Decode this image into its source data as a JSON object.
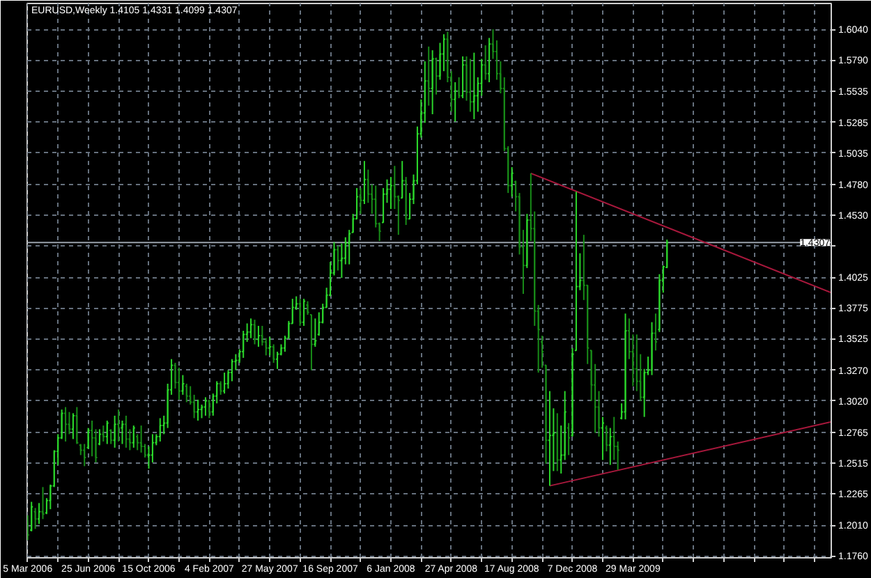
{
  "chart_data": {
    "type": "candlestick",
    "title": "EURUSD,Weekly 1.4105 1.4331 1.4099 1.4307",
    "grid": true,
    "x": [
      "2006-03-05",
      "2006-03-12",
      "2006-03-19",
      "2006-03-26",
      "2006-04-02",
      "2006-04-09",
      "2006-04-16",
      "2006-04-23",
      "2006-04-30",
      "2006-05-07",
      "2006-05-14",
      "2006-05-21",
      "2006-05-28",
      "2006-06-04",
      "2006-06-11",
      "2006-06-18",
      "2006-06-25",
      "2006-07-02",
      "2006-07-09",
      "2006-07-16",
      "2006-07-23",
      "2006-07-30",
      "2006-08-06",
      "2006-08-13",
      "2006-08-20",
      "2006-08-27",
      "2006-09-03",
      "2006-09-10",
      "2006-09-17",
      "2006-09-24",
      "2006-10-01",
      "2006-10-08",
      "2006-10-15",
      "2006-10-22",
      "2006-10-29",
      "2006-11-05",
      "2006-11-12",
      "2006-11-19",
      "2006-11-26",
      "2006-12-03",
      "2006-12-10",
      "2006-12-17",
      "2006-12-24",
      "2006-12-31",
      "2007-01-07",
      "2007-01-14",
      "2007-01-21",
      "2007-01-28",
      "2007-02-04",
      "2007-02-11",
      "2007-02-18",
      "2007-02-25",
      "2007-03-04",
      "2007-03-11",
      "2007-03-18",
      "2007-03-25",
      "2007-04-01",
      "2007-04-08",
      "2007-04-15",
      "2007-04-22",
      "2007-04-29",
      "2007-05-06",
      "2007-05-13",
      "2007-05-20",
      "2007-05-27",
      "2007-06-03",
      "2007-06-10",
      "2007-06-17",
      "2007-06-24",
      "2007-07-01",
      "2007-07-08",
      "2007-07-15",
      "2007-07-22",
      "2007-07-29",
      "2007-08-05",
      "2007-08-12",
      "2007-08-19",
      "2007-08-26",
      "2007-09-02",
      "2007-09-09",
      "2007-09-16",
      "2007-09-23",
      "2007-09-30",
      "2007-10-07",
      "2007-10-14",
      "2007-10-21",
      "2007-10-28",
      "2007-11-04",
      "2007-11-11",
      "2007-11-18",
      "2007-11-25",
      "2007-12-02",
      "2007-12-09",
      "2007-12-16",
      "2007-12-23",
      "2007-12-30",
      "2008-01-06",
      "2008-01-13",
      "2008-01-20",
      "2008-01-27",
      "2008-02-03",
      "2008-02-10",
      "2008-02-17",
      "2008-02-24",
      "2008-03-02",
      "2008-03-09",
      "2008-03-16",
      "2008-03-23",
      "2008-03-30",
      "2008-04-06",
      "2008-04-13",
      "2008-04-20",
      "2008-04-27",
      "2008-05-04",
      "2008-05-11",
      "2008-05-18",
      "2008-05-25",
      "2008-06-01",
      "2008-06-08",
      "2008-06-15",
      "2008-06-22",
      "2008-06-29",
      "2008-07-06",
      "2008-07-13",
      "2008-07-20",
      "2008-07-27",
      "2008-08-03",
      "2008-08-10",
      "2008-08-17",
      "2008-08-24",
      "2008-08-31",
      "2008-09-07",
      "2008-09-14",
      "2008-09-21",
      "2008-09-28",
      "2008-10-05",
      "2008-10-12",
      "2008-10-19",
      "2008-10-26",
      "2008-11-02",
      "2008-11-09",
      "2008-11-16",
      "2008-11-23",
      "2008-11-30",
      "2008-12-07",
      "2008-12-14",
      "2008-12-21",
      "2008-12-28",
      "2009-01-04",
      "2009-01-11",
      "2009-01-18",
      "2009-01-25",
      "2009-02-01",
      "2009-02-08",
      "2009-02-15",
      "2009-02-22",
      "2009-03-01",
      "2009-03-08",
      "2009-03-15",
      "2009-03-22",
      "2009-03-29",
      "2009-04-05",
      "2009-04-12",
      "2009-04-19",
      "2009-04-26",
      "2009-05-03",
      "2009-05-10",
      "2009-05-17",
      "2009-05-24",
      "2009-05-31"
    ],
    "ohlc": [
      [
        1.203,
        1.209,
        1.189,
        1.193
      ],
      [
        1.197,
        1.22,
        1.196,
        1.216
      ],
      [
        1.212,
        1.215,
        1.198,
        1.206
      ],
      [
        1.206,
        1.219,
        1.202,
        1.212
      ],
      [
        1.212,
        1.232,
        1.206,
        1.21
      ],
      [
        1.211,
        1.223,
        1.21,
        1.221
      ],
      [
        1.221,
        1.234,
        1.214,
        1.233
      ],
      [
        1.233,
        1.262,
        1.232,
        1.261
      ],
      [
        1.261,
        1.275,
        1.25,
        1.272
      ],
      [
        1.272,
        1.295,
        1.271,
        1.292
      ],
      [
        1.292,
        1.297,
        1.269,
        1.283
      ],
      [
        1.283,
        1.293,
        1.275,
        1.279
      ],
      [
        1.279,
        1.292,
        1.271,
        1.29
      ],
      [
        1.29,
        1.297,
        1.267,
        1.268
      ],
      [
        1.266,
        1.267,
        1.258,
        1.262
      ],
      [
        1.262,
        1.267,
        1.249,
        1.256
      ],
      [
        1.264,
        1.28,
        1.263,
        1.278
      ],
      [
        1.278,
        1.286,
        1.257,
        1.272
      ],
      [
        1.272,
        1.279,
        1.252,
        1.256
      ],
      [
        1.267,
        1.279,
        1.266,
        1.275
      ],
      [
        1.275,
        1.282,
        1.269,
        1.273
      ],
      [
        1.273,
        1.286,
        1.267,
        1.284
      ],
      [
        1.278,
        1.279,
        1.267,
        1.27
      ],
      [
        1.27,
        1.29,
        1.264,
        1.283
      ],
      [
        1.283,
        1.295,
        1.269,
        1.28
      ],
      [
        1.28,
        1.286,
        1.267,
        1.283
      ],
      [
        1.283,
        1.29,
        1.264,
        1.271
      ],
      [
        1.271,
        1.279,
        1.262,
        1.268
      ],
      [
        1.268,
        1.282,
        1.264,
        1.28
      ],
      [
        1.273,
        1.275,
        1.262,
        1.268
      ],
      [
        1.268,
        1.282,
        1.26,
        1.265
      ],
      [
        1.265,
        1.267,
        1.256,
        1.258
      ],
      [
        1.258,
        1.265,
        1.247,
        1.258
      ],
      [
        1.258,
        1.275,
        1.252,
        1.268
      ],
      [
        1.268,
        1.275,
        1.266,
        1.273
      ],
      [
        1.273,
        1.288,
        1.269,
        1.282
      ],
      [
        1.282,
        1.29,
        1.275,
        1.284
      ],
      [
        1.284,
        1.316,
        1.28,
        1.311
      ],
      [
        1.311,
        1.336,
        1.307,
        1.331
      ],
      [
        1.331,
        1.333,
        1.312,
        1.317
      ],
      [
        1.317,
        1.329,
        1.303,
        1.31
      ],
      [
        1.31,
        1.323,
        1.307,
        1.316
      ],
      [
        1.314,
        1.316,
        1.301,
        1.306
      ],
      [
        1.306,
        1.314,
        1.299,
        1.301
      ],
      [
        1.301,
        1.307,
        1.288,
        1.293
      ],
      [
        1.293,
        1.303,
        1.286,
        1.295
      ],
      [
        1.295,
        1.299,
        1.288,
        1.297
      ],
      [
        1.297,
        1.305,
        1.29,
        1.302
      ],
      [
        1.302,
        1.303,
        1.288,
        1.293
      ],
      [
        1.293,
        1.308,
        1.29,
        1.306
      ],
      [
        1.306,
        1.318,
        1.3,
        1.316
      ],
      [
        1.316,
        1.318,
        1.307,
        1.31
      ],
      [
        1.31,
        1.325,
        1.308,
        1.316
      ],
      [
        1.316,
        1.327,
        1.312,
        1.325
      ],
      [
        1.325,
        1.336,
        1.318,
        1.334
      ],
      [
        1.334,
        1.34,
        1.327,
        1.335
      ],
      [
        1.335,
        1.344,
        1.333,
        1.342
      ],
      [
        1.342,
        1.359,
        1.337,
        1.356
      ],
      [
        1.356,
        1.365,
        1.35,
        1.358
      ],
      [
        1.358,
        1.369,
        1.353,
        1.364
      ],
      [
        1.364,
        1.368,
        1.348,
        1.352
      ],
      [
        1.352,
        1.363,
        1.346,
        1.355
      ],
      [
        1.355,
        1.363,
        1.347,
        1.35
      ],
      [
        1.35,
        1.353,
        1.339,
        1.345
      ],
      [
        1.345,
        1.354,
        1.339,
        1.346
      ],
      [
        1.346,
        1.348,
        1.333,
        1.336
      ],
      [
        1.336,
        1.342,
        1.328,
        1.34
      ],
      [
        1.34,
        1.348,
        1.339,
        1.345
      ],
      [
        1.345,
        1.355,
        1.342,
        1.353
      ],
      [
        1.353,
        1.367,
        1.353,
        1.365
      ],
      [
        1.365,
        1.385,
        1.365,
        1.378
      ],
      [
        1.378,
        1.387,
        1.376,
        1.381
      ],
      [
        1.381,
        1.385,
        1.363,
        1.366
      ],
      [
        1.366,
        1.385,
        1.363,
        1.383
      ],
      [
        1.38,
        1.383,
        1.372,
        1.374
      ],
      [
        1.372,
        1.372,
        1.327,
        1.348
      ],
      [
        1.348,
        1.369,
        1.346,
        1.351
      ],
      [
        1.356,
        1.374,
        1.355,
        1.366
      ],
      [
        1.366,
        1.381,
        1.365,
        1.378
      ],
      [
        1.378,
        1.394,
        1.378,
        1.388
      ],
      [
        1.388,
        1.415,
        1.387,
        1.406
      ],
      [
        1.406,
        1.431,
        1.404,
        1.425
      ],
      [
        1.425,
        1.428,
        1.408,
        1.416
      ],
      [
        1.416,
        1.43,
        1.402,
        1.418
      ],
      [
        1.418,
        1.435,
        1.413,
        1.43
      ],
      [
        1.43,
        1.441,
        1.413,
        1.438
      ],
      [
        1.439,
        1.454,
        1.439,
        1.45
      ],
      [
        1.45,
        1.475,
        1.45,
        1.468
      ],
      [
        1.468,
        1.475,
        1.454,
        1.465
      ],
      [
        1.465,
        1.497,
        1.462,
        1.482
      ],
      [
        1.482,
        1.49,
        1.463,
        1.47
      ],
      [
        1.47,
        1.478,
        1.454,
        1.466
      ],
      [
        1.466,
        1.477,
        1.443,
        1.446
      ],
      [
        1.446,
        1.447,
        1.432,
        1.44
      ],
      [
        1.447,
        1.475,
        1.447,
        1.47
      ],
      [
        1.47,
        1.482,
        1.463,
        1.474
      ],
      [
        1.474,
        1.484,
        1.458,
        1.477
      ],
      [
        1.477,
        1.493,
        1.458,
        1.468
      ],
      [
        1.468,
        1.469,
        1.437,
        1.465
      ],
      [
        1.467,
        1.497,
        1.467,
        1.481
      ],
      [
        1.481,
        1.484,
        1.445,
        1.45
      ],
      [
        1.45,
        1.471,
        1.45,
        1.466
      ],
      [
        1.466,
        1.486,
        1.462,
        1.481
      ],
      [
        1.481,
        1.525,
        1.478,
        1.519
      ],
      [
        1.519,
        1.547,
        1.516,
        1.536
      ],
      [
        1.536,
        1.578,
        1.528,
        1.562
      ],
      [
        1.562,
        1.59,
        1.542,
        1.556
      ],
      [
        1.556,
        1.587,
        1.535,
        1.58
      ],
      [
        1.58,
        1.581,
        1.551,
        1.566
      ],
      [
        1.566,
        1.593,
        1.563,
        1.584
      ],
      [
        1.584,
        1.6,
        1.57,
        1.596
      ],
      [
        1.596,
        1.602,
        1.561,
        1.565
      ],
      [
        1.565,
        1.57,
        1.537,
        1.547
      ],
      [
        1.547,
        1.561,
        1.529,
        1.554
      ],
      [
        1.554,
        1.565,
        1.548,
        1.55
      ],
      [
        1.55,
        1.582,
        1.548,
        1.575
      ],
      [
        1.575,
        1.582,
        1.546,
        1.553
      ],
      [
        1.553,
        1.58,
        1.537,
        1.545
      ],
      [
        1.545,
        1.585,
        1.531,
        1.55
      ],
      [
        1.55,
        1.565,
        1.537,
        1.56
      ],
      [
        1.56,
        1.58,
        1.55,
        1.575
      ],
      [
        1.575,
        1.591,
        1.563,
        1.568
      ],
      [
        1.568,
        1.597,
        1.561,
        1.592
      ],
      [
        1.592,
        1.604,
        1.58,
        1.586
      ],
      [
        1.586,
        1.595,
        1.563,
        1.568
      ],
      [
        1.568,
        1.578,
        1.552,
        1.556
      ],
      [
        1.556,
        1.565,
        1.505,
        1.507
      ],
      [
        1.507,
        1.509,
        1.471,
        1.477
      ],
      [
        1.477,
        1.492,
        1.468,
        1.487
      ],
      [
        1.48,
        1.481,
        1.456,
        1.468
      ],
      [
        1.468,
        1.471,
        1.421,
        1.427
      ],
      [
        1.427,
        1.441,
        1.389,
        1.412
      ],
      [
        1.412,
        1.454,
        1.41,
        1.449
      ],
      [
        1.449,
        1.487,
        1.432,
        1.442
      ],
      [
        1.442,
        1.456,
        1.363,
        1.375
      ],
      [
        1.375,
        1.38,
        1.325,
        1.36
      ],
      [
        1.35,
        1.355,
        1.329,
        1.342
      ],
      [
        1.331,
        1.331,
        1.251,
        1.27
      ],
      [
        1.27,
        1.31,
        1.233,
        1.274
      ],
      [
        1.274,
        1.296,
        1.245,
        1.276
      ],
      [
        1.276,
        1.292,
        1.245,
        1.254
      ],
      [
        1.254,
        1.282,
        1.243,
        1.258
      ],
      [
        1.258,
        1.31,
        1.254,
        1.293
      ],
      [
        1.28,
        1.284,
        1.258,
        1.272
      ],
      [
        1.274,
        1.345,
        1.273,
        1.34
      ],
      [
        1.343,
        1.472,
        1.343,
        1.395
      ],
      [
        1.395,
        1.422,
        1.392,
        1.4
      ],
      [
        1.4,
        1.437,
        1.384,
        1.396
      ],
      [
        1.396,
        1.396,
        1.332,
        1.345
      ],
      [
        1.343,
        1.343,
        1.302,
        1.315
      ],
      [
        1.315,
        1.332,
        1.276,
        1.297
      ],
      [
        1.297,
        1.31,
        1.273,
        1.28
      ],
      [
        1.28,
        1.289,
        1.254,
        1.284
      ],
      [
        1.28,
        1.282,
        1.261,
        1.266
      ],
      [
        1.266,
        1.28,
        1.25,
        1.273
      ],
      [
        1.273,
        1.289,
        1.254,
        1.265
      ],
      [
        1.265,
        1.269,
        1.246,
        1.262
      ],
      [
        1.288,
        1.3,
        1.287,
        1.293
      ],
      [
        1.293,
        1.373,
        1.287,
        1.359
      ],
      [
        1.359,
        1.369,
        1.336,
        1.342
      ],
      [
        1.342,
        1.356,
        1.314,
        1.328
      ],
      [
        1.328,
        1.356,
        1.31,
        1.318
      ],
      [
        1.318,
        1.34,
        1.302,
        1.305
      ],
      [
        1.305,
        1.328,
        1.289,
        1.325
      ],
      [
        1.325,
        1.338,
        1.323,
        1.327
      ],
      [
        1.327,
        1.366,
        1.323,
        1.357
      ],
      [
        1.357,
        1.373,
        1.343,
        1.35
      ],
      [
        1.36,
        1.405,
        1.358,
        1.4
      ],
      [
        1.4,
        1.412,
        1.39,
        1.411
      ],
      [
        1.4105,
        1.4331,
        1.4099,
        1.4307
      ]
    ],
    "colors": [
      "#188c18",
      "#2bd62b",
      "#188c18",
      "#2bd62b",
      "#188c18",
      "#2bd62b",
      "#2bd62b",
      "#2bd62b",
      "#2bd62b",
      "#2bd62b",
      "#188c18",
      "#188c18",
      "#2bd62b",
      "#188c18",
      "#188c18",
      "#188c18",
      "#2bd62b",
      "#188c18",
      "#188c18",
      "#2bd62b",
      "#188c18",
      "#2bd62b",
      "#188c18",
      "#2bd62b",
      "#188c18",
      "#2bd62b",
      "#188c18",
      "#188c18",
      "#2bd62b",
      "#188c18",
      "#188c18",
      "#188c18",
      "#2bd62b",
      "#2bd62b",
      "#2bd62b",
      "#2bd62b",
      "#2bd62b",
      "#2bd62b",
      "#2bd62b",
      "#188c18",
      "#188c18",
      "#2bd62b",
      "#188c18",
      "#188c18",
      "#188c18",
      "#2bd62b",
      "#2bd62b",
      "#2bd62b",
      "#188c18",
      "#2bd62b",
      "#2bd62b",
      "#188c18",
      "#2bd62b",
      "#2bd62b",
      "#2bd62b",
      "#2bd62b",
      "#2bd62b",
      "#2bd62b",
      "#2bd62b",
      "#2bd62b",
      "#188c18",
      "#2bd62b",
      "#188c18",
      "#188c18",
      "#2bd62b",
      "#188c18",
      "#2bd62b",
      "#2bd62b",
      "#2bd62b",
      "#2bd62b",
      "#2bd62b",
      "#2bd62b",
      "#188c18",
      "#2bd62b",
      "#188c18",
      "#188c18",
      "#2bd62b",
      "#2bd62b",
      "#2bd62b",
      "#2bd62b",
      "#2bd62b",
      "#2bd62b",
      "#188c18",
      "#2bd62b",
      "#2bd62b",
      "#2bd62b",
      "#2bd62b",
      "#2bd62b",
      "#188c18",
      "#2bd62b",
      "#188c18",
      "#188c18",
      "#188c18",
      "#188c18",
      "#2bd62b",
      "#2bd62b",
      "#2bd62b",
      "#188c18",
      "#188c18",
      "#2bd62b",
      "#188c18",
      "#2bd62b",
      "#2bd62b",
      "#2bd62b",
      "#2bd62b",
      "#2bd62b",
      "#188c18",
      "#2bd62b",
      "#188c18",
      "#2bd62b",
      "#2bd62b",
      "#188c18",
      "#188c18",
      "#2bd62b",
      "#188c18",
      "#2bd62b",
      "#188c18",
      "#188c18",
      "#2bd62b",
      "#2bd62b",
      "#2bd62b",
      "#188c18",
      "#2bd62b",
      "#188c18",
      "#188c18",
      "#188c18",
      "#188c18",
      "#188c18",
      "#2bd62b",
      "#188c18",
      "#188c18",
      "#188c18",
      "#2bd62b",
      "#188c18",
      "#188c18",
      "#188c18",
      "#188c18",
      "#188c18",
      "#2bd62b",
      "#2bd62b",
      "#188c18",
      "#2bd62b",
      "#2bd62b",
      "#188c18",
      "#2bd62b",
      "#2bd62b",
      "#2bd62b",
      "#188c18",
      "#188c18",
      "#188c18",
      "#188c18",
      "#188c18",
      "#2bd62b",
      "#188c18",
      "#2bd62b",
      "#188c18",
      "#188c18",
      "#2bd62b",
      "#2bd62b",
      "#188c18",
      "#188c18",
      "#188c18",
      "#188c18",
      "#2bd62b",
      "#2bd62b",
      "#2bd62b",
      "#188c18",
      "#2bd62b",
      "#2bd62b",
      "#2bd62b"
    ],
    "series": [
      {
        "type": "line",
        "color": "#a8183c",
        "x": [
          "2008-09-21",
          "2010-03-31"
        ],
        "values": [
          1.487,
          1.39
        ]
      },
      {
        "type": "line",
        "color": "#a8183c",
        "x": [
          "2008-10-26",
          "2010-03-31"
        ],
        "values": [
          1.233,
          1.285
        ]
      }
    ],
    "ref_lines": [
      {
        "axis": "y",
        "value": 1.4307,
        "label": "1.4307",
        "color": "#9aa2ac"
      }
    ],
    "xlim": [
      "2006-03-04",
      "2010-03-31"
    ],
    "xticks": [
      {
        "value": "2006-03-05",
        "label": "5 Mar 2006"
      },
      {
        "value": "2006-04-30",
        "label": null
      },
      {
        "value": "2006-06-25",
        "label": "25 Jun 2006"
      },
      {
        "value": "2006-08-20",
        "label": null
      },
      {
        "value": "2006-10-15",
        "label": "15 Oct 2006"
      },
      {
        "value": "2006-12-10",
        "label": null
      },
      {
        "value": "2007-02-04",
        "label": "4 Feb 2007"
      },
      {
        "value": "2007-04-01",
        "label": null
      },
      {
        "value": "2007-05-27",
        "label": "27 May 2007"
      },
      {
        "value": "2007-07-22",
        "label": null
      },
      {
        "value": "2007-09-16",
        "label": "16 Sep 2007"
      },
      {
        "value": "2007-11-11",
        "label": null
      },
      {
        "value": "2008-01-06",
        "label": "6 Jan 2008"
      },
      {
        "value": "2008-03-02",
        "label": null
      },
      {
        "value": "2008-04-27",
        "label": "27 Apr 2008"
      },
      {
        "value": "2008-06-22",
        "label": null
      },
      {
        "value": "2008-08-17",
        "label": "17 Aug 2008"
      },
      {
        "value": "2008-10-12",
        "label": null
      },
      {
        "value": "2008-12-07",
        "label": "7 Dec 2008"
      },
      {
        "value": "2009-02-01",
        "label": null
      },
      {
        "value": "2009-03-29",
        "label": "29 Mar 2009"
      },
      {
        "value": "2009-05-24",
        "label": null
      },
      {
        "value": "2009-07-19",
        "label": null
      },
      {
        "value": "2009-09-13",
        "label": null
      },
      {
        "value": "2009-11-08",
        "label": null
      },
      {
        "value": "2010-01-03",
        "label": null
      },
      {
        "value": "2010-02-28",
        "label": null
      }
    ],
    "ylim": [
      1.1745,
      1.625
    ],
    "yticks": [
      {
        "value": 1.604,
        "label": "1.6040"
      },
      {
        "value": 1.579,
        "label": "1.5790"
      },
      {
        "value": 1.5535,
        "label": "1.5535"
      },
      {
        "value": 1.5285,
        "label": "1.5285"
      },
      {
        "value": 1.5035,
        "label": "1.5035"
      },
      {
        "value": 1.478,
        "label": "1.4780"
      },
      {
        "value": 1.453,
        "label": "1.4530"
      },
      {
        "value": 1.428,
        "label": null
      },
      {
        "value": 1.4025,
        "label": "1.4025"
      },
      {
        "value": 1.3775,
        "label": "1.3775"
      },
      {
        "value": 1.3525,
        "label": "1.3525"
      },
      {
        "value": 1.327,
        "label": "1.3270"
      },
      {
        "value": 1.302,
        "label": "1.3020"
      },
      {
        "value": 1.2765,
        "label": "1.2765"
      },
      {
        "value": 1.2515,
        "label": "1.2515"
      },
      {
        "value": 1.2265,
        "label": "1.2265"
      },
      {
        "value": 1.201,
        "label": "1.2010"
      },
      {
        "value": 1.176,
        "label": "1.1760"
      }
    ]
  }
}
